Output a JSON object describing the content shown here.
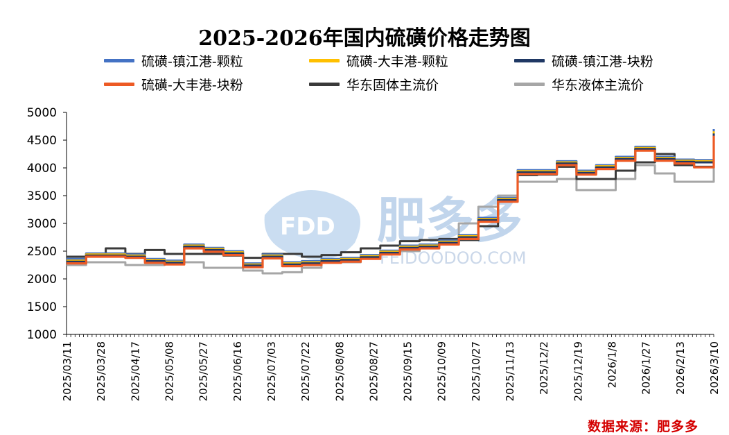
{
  "title": "2025-2026年国内硫磺价格走势图",
  "source_note": "数据来源：肥多多",
  "watermark": {
    "logo_text": "FDD",
    "brand_text": "肥多多",
    "url_text": "FEIDOODOO.COM"
  },
  "chart_data": {
    "type": "line",
    "title": "2025-2026年国内硫磺价格走势图",
    "xlabel": "",
    "ylabel": "",
    "ylim": [
      1000,
      5000
    ],
    "yticks": [
      1000,
      1500,
      2000,
      2500,
      3000,
      3500,
      4000,
      4500,
      5000
    ],
    "x_tick_labels": [
      "2025/03/11",
      "2025/03/28",
      "2025/04/17",
      "2025/05/08",
      "2025/05/27",
      "2025/06/16",
      "2025/07/03",
      "2025/07/22",
      "2025/08/08",
      "2025/08/27",
      "2025/09/15",
      "2025/10/09",
      "2025/10/27",
      "2025/11/13",
      "2025/12/2",
      "2025/12/19",
      "2026/1/8",
      "2026/1/27",
      "2026/2/13",
      "2026/3/10"
    ],
    "grid": false,
    "legend_position": "top",
    "series": [
      {
        "name": "硫磺-镇江港-颗粒",
        "color": "#4472c4",
        "values": [
          2360,
          2460,
          2460,
          2440,
          2360,
          2330,
          2620,
          2560,
          2500,
          2280,
          2440,
          2300,
          2320,
          2360,
          2380,
          2430,
          2510,
          2600,
          2620,
          2690,
          2790,
          3100,
          3460,
          3960,
          3960,
          4120,
          3950,
          4050,
          4200,
          4380,
          4200,
          4150,
          4140,
          4700
        ]
      },
      {
        "name": "硫磺-大丰港-颗粒",
        "color": "#ffc000",
        "values": [
          2330,
          2440,
          2440,
          2420,
          2340,
          2310,
          2600,
          2540,
          2480,
          2260,
          2420,
          2280,
          2300,
          2340,
          2360,
          2410,
          2490,
          2580,
          2600,
          2670,
          2770,
          3080,
          3440,
          3940,
          3940,
          4100,
          3930,
          4030,
          4180,
          4360,
          4180,
          4130,
          4120,
          4660
        ]
      },
      {
        "name": "硫磺-镇江港-块粉",
        "color": "#1f3864",
        "values": [
          2310,
          2420,
          2420,
          2400,
          2320,
          2290,
          2580,
          2520,
          2460,
          2240,
          2400,
          2260,
          2280,
          2320,
          2340,
          2390,
          2470,
          2560,
          2580,
          2650,
          2750,
          3060,
          3420,
          3920,
          3920,
          4080,
          3910,
          4010,
          4160,
          4340,
          4160,
          4110,
          4100,
          4620
        ]
      },
      {
        "name": "硫磺-大丰港-块粉",
        "color": "#ed5a24",
        "values": [
          2280,
          2400,
          2400,
          2380,
          2290,
          2260,
          2550,
          2490,
          2430,
          2210,
          2370,
          2230,
          2250,
          2290,
          2310,
          2360,
          2440,
          2530,
          2550,
          2620,
          2720,
          3030,
          3390,
          3890,
          3890,
          4050,
          3880,
          3980,
          4130,
          4310,
          4130,
          4080,
          4010,
          4580
        ]
      },
      {
        "name": "华东固体主流价",
        "color": "#3a3a3a",
        "values": [
          2400,
          2450,
          2550,
          2450,
          2520,
          2450,
          2450,
          2450,
          2420,
          2380,
          2450,
          2450,
          2400,
          2430,
          2480,
          2550,
          2600,
          2680,
          2700,
          2720,
          2700,
          2950,
          3400,
          3870,
          3880,
          4020,
          3800,
          3800,
          3950,
          4100,
          4250,
          4050,
          4020,
          4520
        ]
      },
      {
        "name": "华东液体主流价",
        "color": "#a6a6a6",
        "values": [
          2250,
          2300,
          2300,
          2250,
          2250,
          2300,
          2300,
          2200,
          2200,
          2150,
          2100,
          2120,
          2200,
          2300,
          2300,
          2400,
          2450,
          2500,
          2550,
          2700,
          3000,
          3300,
          3500,
          3750,
          3750,
          3800,
          3600,
          3600,
          3800,
          4050,
          3900,
          3750,
          3750,
          4100
        ]
      }
    ]
  }
}
